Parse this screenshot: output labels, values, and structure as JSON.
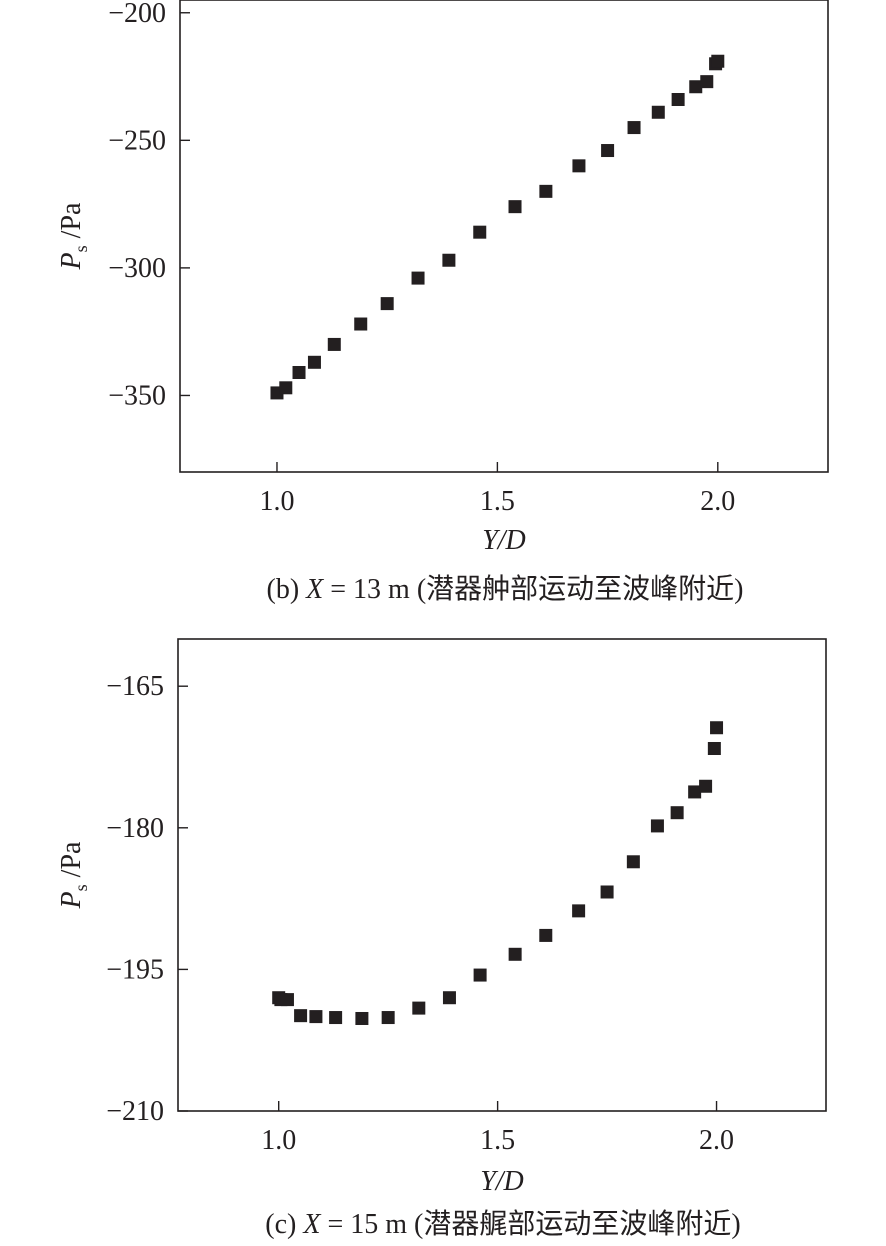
{
  "chart_data": [
    {
      "type": "scatter",
      "caption": "(b) X = 13 m (潜器舯部运动至波峰附近)",
      "caption_parts": {
        "prefix": "(b) ",
        "var": "X",
        "rest": " = 13 m (潜器舯部运动至波峰附近)"
      },
      "xlabel": "Y/D",
      "ylabel": "P_s /Pa",
      "ylabel_parts": {
        "main": "P",
        "sub": "s",
        "unit": " /Pa"
      },
      "xlim": [
        0.78,
        2.25
      ],
      "ylim": [
        -380,
        -195
      ],
      "x_ticks": [
        1.0,
        1.5,
        2.0
      ],
      "x_tick_labels": [
        "1.0",
        "1.5",
        "2.0"
      ],
      "y_ticks": [
        -200,
        -250,
        -300,
        -350
      ],
      "y_tick_labels": [
        "−200",
        "−250",
        "−300",
        "−350"
      ],
      "marker_color": "#231f20",
      "x": [
        1.0,
        1.02,
        1.05,
        1.085,
        1.13,
        1.19,
        1.25,
        1.32,
        1.39,
        1.46,
        1.54,
        1.61,
        1.685,
        1.75,
        1.81,
        1.865,
        1.91,
        1.95,
        1.975,
        1.995,
        2.0
      ],
      "y": [
        -349,
        -347,
        -341,
        -337,
        -330,
        -322,
        -314,
        -304,
        -297,
        -286,
        -276,
        -270,
        -260,
        -254,
        -245,
        -239,
        -234,
        -229,
        -227,
        -220,
        -219
      ]
    },
    {
      "type": "scatter",
      "caption": "(c) X = 15 m (潜器艉部运动至波峰附近)",
      "caption_parts": {
        "prefix": "(c) ",
        "var": "X",
        "rest": " = 15 m (潜器艉部运动至波峰附近)"
      },
      "xlabel": "Y/D",
      "ylabel": "P_s /Pa",
      "ylabel_parts": {
        "main": "P",
        "sub": "s",
        "unit": " /Pa"
      },
      "xlim": [
        0.77,
        2.25
      ],
      "ylim": [
        -210,
        -160
      ],
      "x_ticks": [
        1.0,
        1.5,
        2.0
      ],
      "x_tick_labels": [
        "1.0",
        "1.5",
        "2.0"
      ],
      "y_ticks": [
        -165,
        -180,
        -195,
        -210
      ],
      "y_tick_labels": [
        "−165",
        "−180",
        "−195",
        "−210"
      ],
      "marker_color": "#231f20",
      "x": [
        1.0,
        1.005,
        1.02,
        1.05,
        1.085,
        1.13,
        1.19,
        1.25,
        1.32,
        1.39,
        1.46,
        1.54,
        1.61,
        1.685,
        1.75,
        1.81,
        1.865,
        1.91,
        1.95,
        1.975,
        1.995,
        2.0
      ],
      "y": [
        -198,
        -198.2,
        -198.2,
        -199.9,
        -200,
        -200.1,
        -200.2,
        -200.1,
        -199.1,
        -198,
        -195.6,
        -193.4,
        -191.4,
        -188.8,
        -186.8,
        -183.6,
        -179.8,
        -178.4,
        -176.2,
        -175.6,
        -171.6,
        -169.4
      ]
    }
  ]
}
